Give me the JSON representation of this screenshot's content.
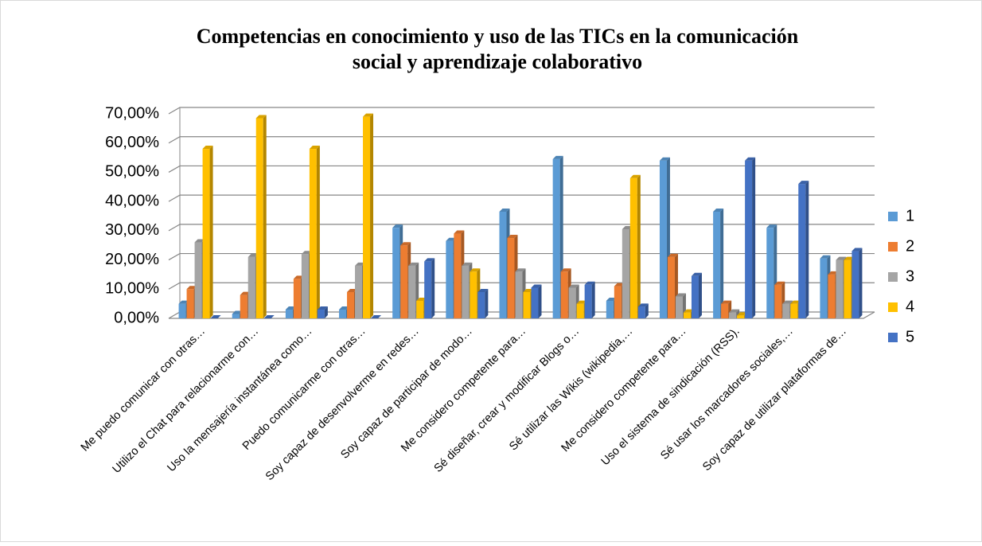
{
  "chart_data": {
    "type": "bar3d",
    "title": "Competencias en conocimiento y uso de las TICs en la comunicación social y aprendizaje colaborativo",
    "categories": [
      "Me puedo comunicar con otras…",
      "Utilizo el Chat para relacionarme con…",
      "Uso la mensajería instantánea como…",
      "Puedo comunicarme con otras…",
      "Soy capaz de desenvolverme en redes…",
      "Soy capaz de participar de modo…",
      "Me considero competente para…",
      "Sé diseñar, crear y modificar Blogs o…",
      "Sé utilizar las Wikis (wikipedia,…",
      "Me considero competente para…",
      "Uso el sistema de sindicación (RSS).",
      "Sé usar los marcadores sociales,…",
      "Soy capaz de utilizar plataformas de…"
    ],
    "series": [
      {
        "name": "1",
        "color": "#5b9bd5",
        "values": [
          5,
          1.5,
          3,
          3,
          31,
          26.5,
          36.5,
          54.5,
          6,
          54,
          36.5,
          31,
          20.5
        ]
      },
      {
        "name": "2",
        "color": "#ed7d31",
        "values": [
          10,
          8,
          13.5,
          9,
          25,
          29,
          27.5,
          16,
          11,
          21,
          5,
          11.5,
          15
        ]
      },
      {
        "name": "3",
        "color": "#a5a5a5",
        "values": [
          26,
          21,
          22,
          18,
          18,
          18,
          16,
          10.5,
          30.5,
          7.5,
          2,
          5,
          20
        ]
      },
      {
        "name": "4",
        "color": "#ffc000",
        "values": [
          58,
          68.5,
          58,
          69,
          6,
          16,
          9,
          5,
          48,
          2,
          1,
          5,
          20
        ]
      },
      {
        "name": "5",
        "color": "#4472c4",
        "values": [
          0,
          0,
          3,
          0,
          19.5,
          9,
          10.5,
          11.5,
          4,
          14.5,
          54,
          46,
          23
        ]
      }
    ],
    "ylim": [
      0,
      70
    ],
    "yticks": [
      {
        "value": 0,
        "label": "0,00%"
      },
      {
        "value": 10,
        "label": "10,00%"
      },
      {
        "value": 20,
        "label": "20,00%"
      },
      {
        "value": 30,
        "label": "30,00%"
      },
      {
        "value": 40,
        "label": "40,00%"
      },
      {
        "value": 50,
        "label": "50,00%"
      },
      {
        "value": 60,
        "label": "60,00%"
      },
      {
        "value": 70,
        "label": "70,00%"
      }
    ],
    "grid": true,
    "legend": "right"
  }
}
